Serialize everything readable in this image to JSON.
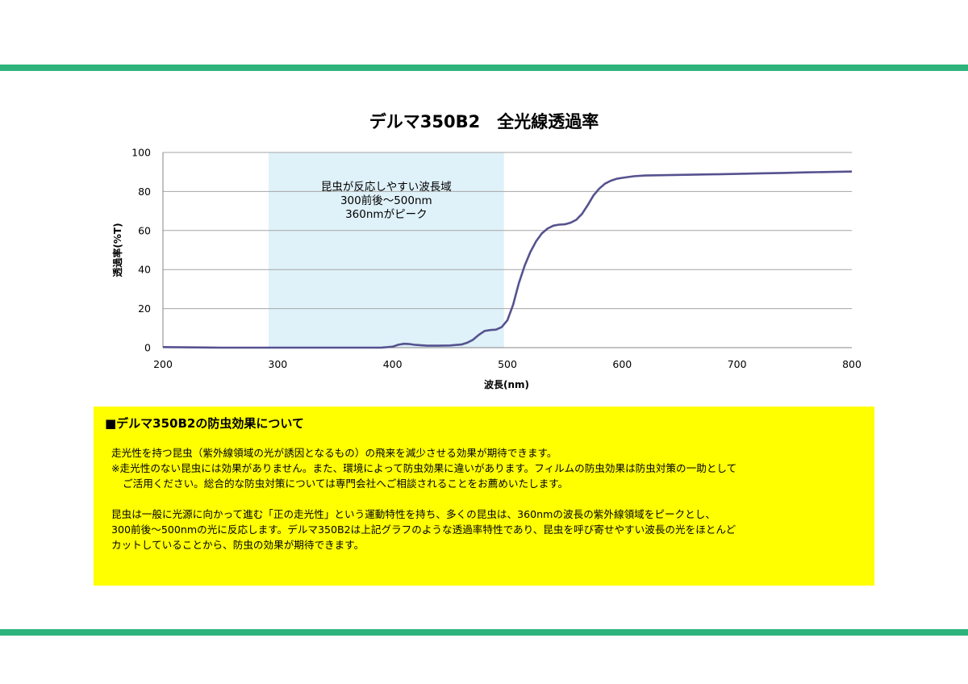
{
  "colors": {
    "rule": "#2eb37c",
    "highlight_box": "#ffff00",
    "shaded_band": "#dff1f9",
    "series_line": "#55528f",
    "grid": "#a6a6a6"
  },
  "chart_data": {
    "type": "line",
    "title": "デルマ350B2　全光線透過率",
    "xlabel": "波長(nm)",
    "ylabel": "透過率(%T)",
    "xlim": [
      200,
      800
    ],
    "ylim": [
      0,
      100
    ],
    "xticks": [
      "200",
      "300",
      "400",
      "500",
      "600",
      "700",
      "800"
    ],
    "yticks": [
      "0",
      "20",
      "40",
      "60",
      "80",
      "100"
    ],
    "grid": "horizontal",
    "legend": "none",
    "series": [
      {
        "x": [
          200,
          250,
          300,
          350,
          390,
          400,
          405,
          410,
          415,
          420,
          430,
          440,
          450,
          460,
          465,
          470,
          475,
          480,
          485,
          490,
          495,
          500,
          505,
          510,
          515,
          520,
          525,
          530,
          535,
          540,
          545,
          550,
          555,
          560,
          565,
          570,
          575,
          580,
          585,
          590,
          595,
          600,
          610,
          620,
          640,
          660,
          680,
          700,
          720,
          740,
          760,
          780,
          800
        ],
        "y": [
          0.3,
          0.0,
          0.0,
          0.0,
          0.0,
          0.5,
          1.5,
          2.0,
          1.8,
          1.4,
          1.0,
          1.0,
          1.1,
          1.6,
          2.5,
          4.0,
          6.5,
          8.5,
          9.0,
          9.2,
          10.5,
          14.0,
          22.0,
          33.0,
          42.0,
          49.0,
          54.5,
          58.5,
          61.0,
          62.5,
          63.0,
          63.2,
          64.0,
          65.5,
          68.5,
          73.0,
          78.0,
          81.5,
          84.0,
          85.5,
          86.5,
          87.0,
          87.8,
          88.2,
          88.4,
          88.6,
          88.8,
          89.0,
          89.3,
          89.5,
          89.8,
          90.0,
          90.2
        ]
      }
    ],
    "annotation": {
      "x_range": [
        292,
        497
      ],
      "lines": [
        "昆虫が反応しやすい波長域",
        "300前後～500nm",
        "360nmがピーク"
      ]
    }
  },
  "info": {
    "title": "■デルマ350B2の防虫効果について",
    "lines": [
      "走光性を持つ昆虫（紫外線領域の光が誘因となるもの）の飛来を減少させる効果が期待できます。",
      "※走光性のない昆虫には効果がありません。また、環境によって防虫効果に違いがあります。フィルムの防虫効果は防虫対策の一助として",
      "ご活用ください。総合的な防虫対策については専門会社へご相談されることをお薦めいたします。",
      "昆虫は一般に光源に向かって進む「正の走光性」という運動特性を持ち、多くの昆虫は、360nmの波長の紫外線領域をピークとし、",
      "300前後～500nmの光に反応します。デルマ350B2は上記グラフのような透過率特性であり、昆虫を呼び寄せやすい波長の光をほとんど",
      "カットしていることから、防虫の効果が期待できます。"
    ]
  }
}
